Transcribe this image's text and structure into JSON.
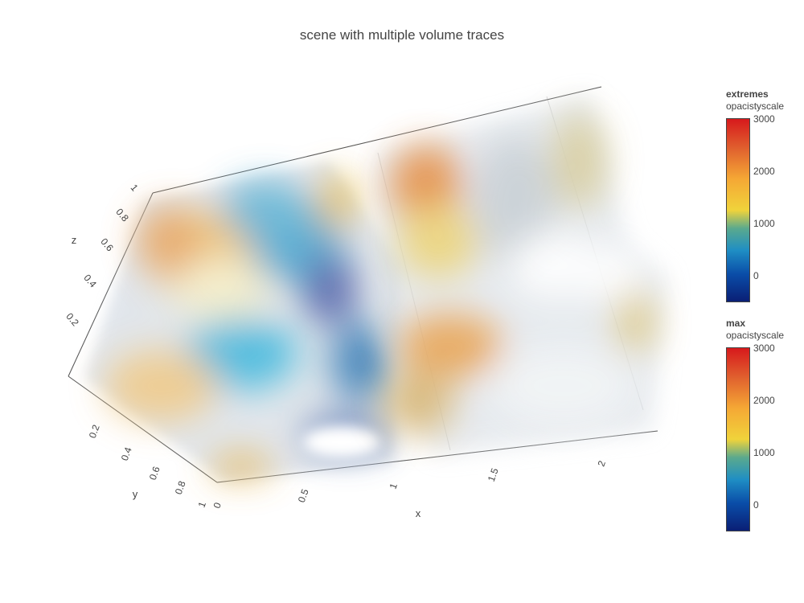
{
  "chart_data": {
    "type": "volume",
    "title": "scene with multiple volume traces",
    "axes": {
      "x": {
        "label": "x",
        "ticks": [
          "0",
          "0.5",
          "1",
          "1.5",
          "2"
        ]
      },
      "y": {
        "label": "y",
        "ticks": [
          "0.2",
          "0.4",
          "0.6",
          "0.8",
          "1"
        ]
      },
      "z": {
        "label": "z",
        "ticks": [
          "0.2",
          "0.4",
          "0.6",
          "0.8",
          "1"
        ]
      }
    },
    "traces": [
      {
        "name": "extremes",
        "x_range": [
          0,
          1
        ],
        "y_range": [
          0,
          1
        ],
        "z_range": [
          0,
          1
        ],
        "color_range": [
          -400,
          3000
        ]
      },
      {
        "name": "max",
        "x_range": [
          1,
          2
        ],
        "y_range": [
          0,
          1
        ],
        "z_range": [
          0,
          1
        ],
        "color_range": [
          -400,
          3000
        ]
      }
    ],
    "colorbars": [
      {
        "title": "extremes",
        "subtitle": "opacistyscale",
        "ticks": [
          "3000",
          "2000",
          "1000",
          "0"
        ]
      },
      {
        "title": "max",
        "subtitle": "opacistyscale",
        "ticks": [
          "3000",
          "2000",
          "1000",
          "0"
        ]
      }
    ],
    "colorscale": [
      "#0a1f75",
      "#0a4da8",
      "#1f8ec4",
      "#5aa98e",
      "#f0d33b",
      "#f5a835",
      "#e0602e",
      "#d7191c"
    ]
  }
}
